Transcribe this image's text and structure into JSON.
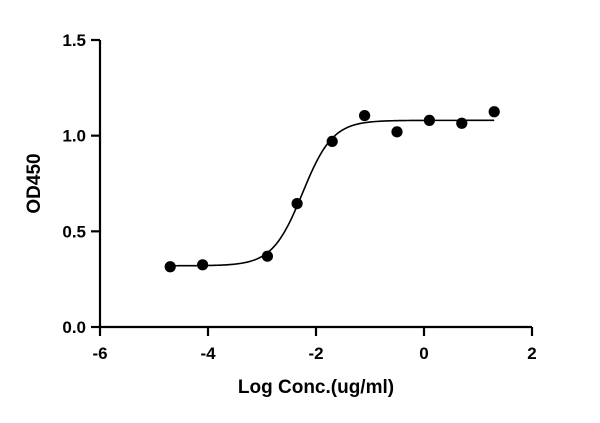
{
  "chart_data": {
    "type": "scatter",
    "xlabel": "Log Conc.(ug/ml)",
    "ylabel": "OD450",
    "xlim": [
      -6,
      2
    ],
    "ylim": [
      0,
      1.5
    ],
    "x_ticks": [
      -6,
      -4,
      -2,
      0,
      2
    ],
    "x_tick_labels": [
      "-6",
      "-4",
      "-2",
      "0",
      "2"
    ],
    "y_ticks": [
      0,
      0.5,
      1.0,
      1.5
    ],
    "y_tick_labels": [
      "0.0",
      "0.5",
      "1.0",
      "1.5"
    ],
    "grid": false,
    "points": [
      {
        "x": -4.7,
        "y": 0.315
      },
      {
        "x": -4.1,
        "y": 0.325
      },
      {
        "x": -2.9,
        "y": 0.37
      },
      {
        "x": -2.35,
        "y": 0.645
      },
      {
        "x": -1.7,
        "y": 0.97
      },
      {
        "x": -1.1,
        "y": 1.105
      },
      {
        "x": -0.5,
        "y": 1.02
      },
      {
        "x": 0.1,
        "y": 1.08
      },
      {
        "x": 0.7,
        "y": 1.065
      },
      {
        "x": 1.3,
        "y": 1.125
      }
    ],
    "fit_curve": {
      "model": "4PL",
      "bottom": 0.32,
      "top": 1.08,
      "logEC50": -2.25,
      "hill_slope": 1.55,
      "x_range": [
        -4.7,
        1.3
      ]
    }
  }
}
